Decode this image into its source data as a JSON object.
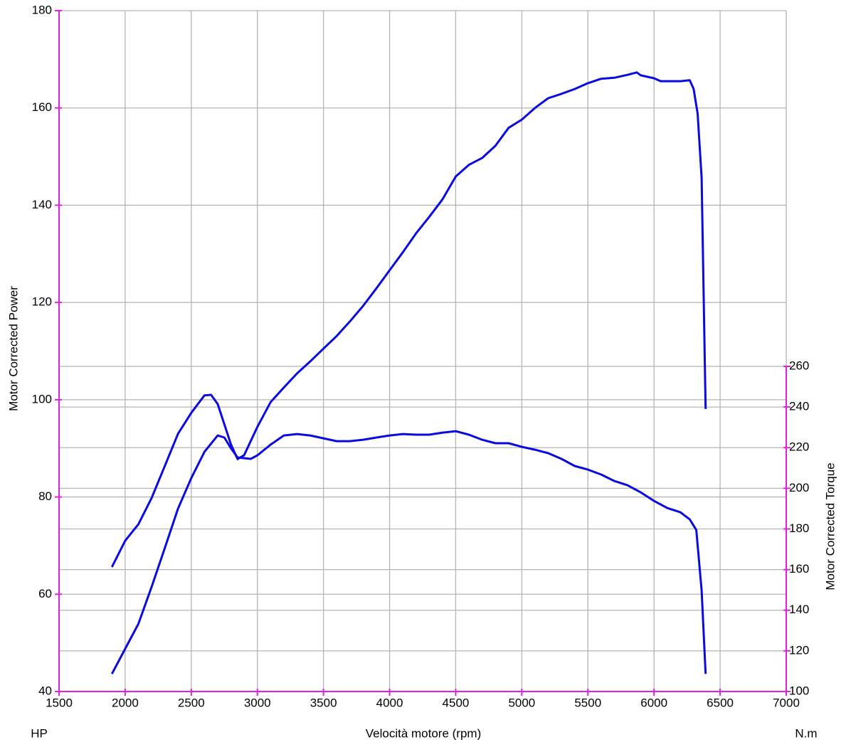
{
  "chart_data": {
    "type": "line",
    "xlabel": "Velocità motore (rpm)",
    "ylabel": "Motor Corrected Power",
    "y2label": "Motor Corrected Torque",
    "yunit": "HP",
    "y2unit": "N.m",
    "xlim": [
      1500,
      7000
    ],
    "xticks": [
      1500,
      2000,
      2500,
      3000,
      3500,
      4000,
      4500,
      5000,
      5500,
      6000,
      6500,
      7000
    ],
    "ylim": [
      40,
      180
    ],
    "yticks": [
      40,
      60,
      80,
      100,
      120,
      140,
      160,
      180
    ],
    "y2lim": [
      100,
      260
    ],
    "y2ticks": [
      100,
      120,
      140,
      160,
      180,
      200,
      220,
      240,
      260
    ],
    "grid": true,
    "axis_color": "#e020e0",
    "series": [
      {
        "color": "#0a0ae0",
        "x": [
          1900,
          2000,
          2100,
          2200,
          2300,
          2400,
          2500,
          2600,
          2650,
          2700,
          2800,
          2850,
          2900,
          3000,
          3100,
          3200,
          3300,
          3400,
          3500,
          3600,
          3700,
          3800,
          3900,
          4000,
          4100,
          4200,
          4300,
          4400,
          4500,
          4600,
          4700,
          4800,
          4900,
          5000,
          5100,
          5200,
          5300,
          5400,
          5500,
          5600,
          5700,
          5800,
          5870,
          5900,
          6000,
          6050,
          6200,
          6270,
          6300,
          6330,
          6360,
          6390
        ],
        "values": [
          65.6,
          71.0,
          74.4,
          79.8,
          86.4,
          93.0,
          97.3,
          100.9,
          101.0,
          99.1,
          90.8,
          87.8,
          88.6,
          94.4,
          99.5,
          102.5,
          105.4,
          107.9,
          110.5,
          113.1,
          116.1,
          119.3,
          122.9,
          126.6,
          130.3,
          134.2,
          137.6,
          141.2,
          145.9,
          148.3,
          149.7,
          152.2,
          155.9,
          157.6,
          160.0,
          162.0,
          162.9,
          163.9,
          165.1,
          166.0,
          166.2,
          166.8,
          167.3,
          166.7,
          166.1,
          165.5,
          165.5,
          165.7,
          163.9,
          158.8,
          145.6,
          98.1
        ]
      },
      {
        "color": "#0a0ae0",
        "axis": "y2",
        "x": [
          1900,
          2000,
          2100,
          2200,
          2300,
          2400,
          2500,
          2600,
          2700,
          2750,
          2800,
          2850,
          2950,
          3000,
          3100,
          3200,
          3300,
          3400,
          3500,
          3600,
          3700,
          3800,
          3900,
          4000,
          4100,
          4200,
          4300,
          4400,
          4500,
          4600,
          4700,
          4800,
          4900,
          5000,
          5100,
          5200,
          5300,
          5400,
          5500,
          5600,
          5700,
          5800,
          5900,
          6000,
          6100,
          6200,
          6270,
          6320,
          6360,
          6390
        ],
        "values": [
          108.7,
          121.0,
          133.3,
          151.5,
          170.7,
          190.0,
          205.0,
          218.0,
          226.0,
          225.0,
          219.7,
          215.2,
          214.5,
          216.2,
          221.5,
          226.0,
          226.7,
          226.0,
          224.6,
          223.2,
          223.2,
          223.9,
          225.0,
          226.0,
          226.7,
          226.4,
          226.4,
          227.4,
          228.1,
          226.4,
          223.9,
          222.2,
          222.2,
          220.4,
          219.0,
          217.3,
          214.5,
          211.0,
          209.2,
          206.8,
          203.6,
          201.5,
          198.0,
          193.8,
          190.3,
          188.2,
          184.7,
          179.5,
          149.7,
          108.7
        ]
      }
    ]
  }
}
